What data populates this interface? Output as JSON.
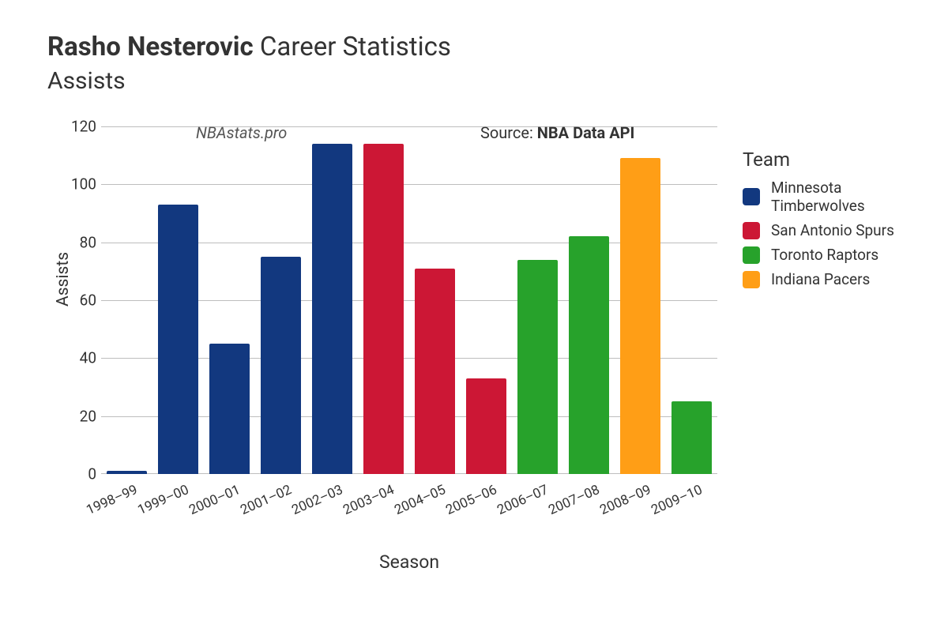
{
  "title": {
    "player_name": "Rasho Nesterovic",
    "suffix": "Career Statistics",
    "metric": "Assists",
    "fontsize_main": 33,
    "fontsize_sub": 30
  },
  "watermark": "NBAstats.pro",
  "source": {
    "prefix": "Source: ",
    "name": "NBA Data API"
  },
  "axes": {
    "xlabel": "Season",
    "ylabel": "Assists",
    "xlabel_fontsize": 23,
    "ylabel_fontsize": 21,
    "tick_fontsize": 19
  },
  "chart": {
    "type": "bar",
    "background_color": "#ffffff",
    "grid_color": "#888888",
    "ylim": [
      0,
      120
    ],
    "ytick_step": 20,
    "yticks": [
      0,
      20,
      40,
      60,
      80,
      100,
      120
    ],
    "bar_width": 0.78,
    "categories": [
      "1998–99",
      "1999–00",
      "2000–01",
      "2001–02",
      "2002–03",
      "2003–04",
      "2004–05",
      "2005–06",
      "2006–07",
      "2007–08",
      "2008–09",
      "2009–10"
    ],
    "values": [
      1,
      93,
      45,
      75,
      114,
      114,
      71,
      33,
      74,
      82,
      109,
      25
    ],
    "team_index": [
      0,
      0,
      0,
      0,
      0,
      1,
      1,
      1,
      2,
      2,
      3,
      2
    ]
  },
  "teams": [
    {
      "name": "Minnesota Timberwolves",
      "color": "#12387f"
    },
    {
      "name": "San Antonio Spurs",
      "color": "#cc1735"
    },
    {
      "name": "Toronto Raptors",
      "color": "#27a22b"
    },
    {
      "name": "Indiana Pacers",
      "color": "#ff9e16"
    }
  ],
  "legend": {
    "title": "Team",
    "title_fontsize": 24,
    "item_fontsize": 19
  }
}
